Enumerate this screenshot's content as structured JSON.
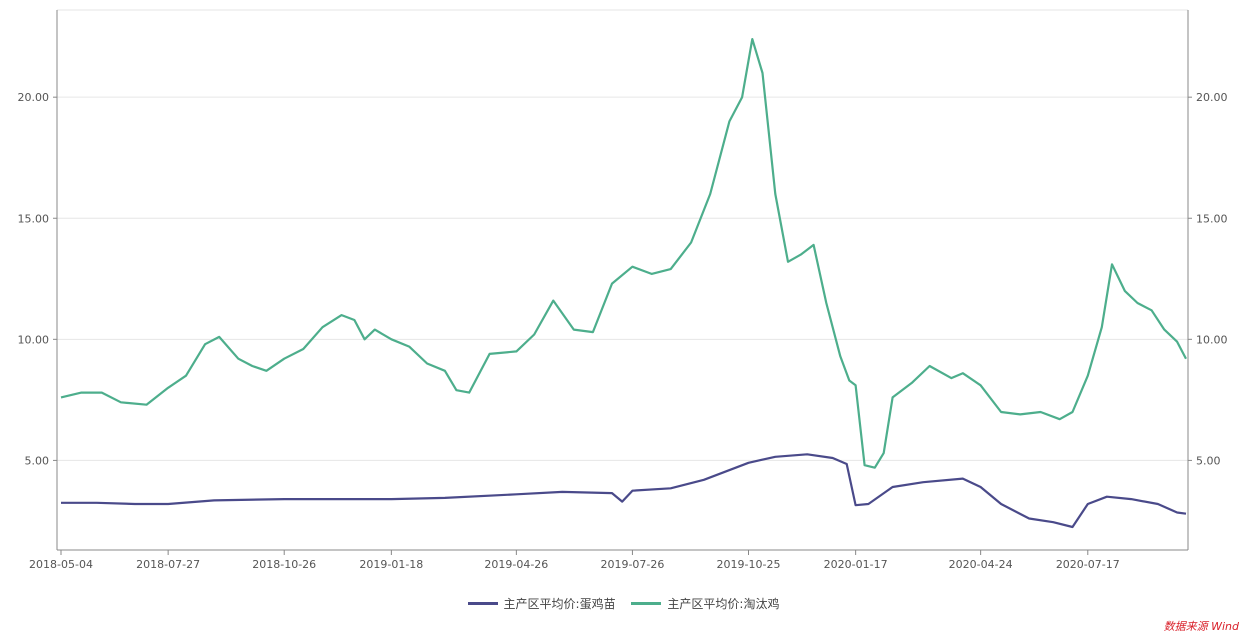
{
  "chart_data": {
    "type": "line",
    "x_ticks": [
      "2018-05-04",
      "2018-07-27",
      "2018-10-26",
      "2019-01-18",
      "2019-04-26",
      "2019-07-26",
      "2019-10-25",
      "2020-01-17",
      "2020-04-24",
      "2020-07-17"
    ],
    "y_left_ticks": [
      "5.00",
      "10.00",
      "15.00",
      "20.00"
    ],
    "y_right_ticks": [
      "5.00",
      "10.00",
      "15.00",
      "20.00"
    ],
    "ylim": [
      1.3,
      23.6
    ],
    "grid": true,
    "legend_position": "bottom",
    "series": [
      {
        "name": "主产区平均价:蛋鸡苗",
        "color": "#4a4a8a",
        "points": [
          [
            "2018-05-04",
            3.25
          ],
          [
            "2018-06-01",
            3.25
          ],
          [
            "2018-07-01",
            3.2
          ],
          [
            "2018-07-27",
            3.2
          ],
          [
            "2018-09-01",
            3.35
          ],
          [
            "2018-10-26",
            3.4
          ],
          [
            "2018-12-01",
            3.4
          ],
          [
            "2019-01-18",
            3.4
          ],
          [
            "2019-03-01",
            3.45
          ],
          [
            "2019-04-26",
            3.6
          ],
          [
            "2019-06-01",
            3.7
          ],
          [
            "2019-07-10",
            3.65
          ],
          [
            "2019-07-18",
            3.3
          ],
          [
            "2019-07-26",
            3.75
          ],
          [
            "2019-08-25",
            3.85
          ],
          [
            "2019-09-20",
            4.2
          ],
          [
            "2019-10-25",
            4.9
          ],
          [
            "2019-11-15",
            5.15
          ],
          [
            "2019-12-10",
            5.25
          ],
          [
            "2019-12-30",
            5.1
          ],
          [
            "2020-01-10",
            4.85
          ],
          [
            "2020-01-17",
            3.15
          ],
          [
            "2020-01-27",
            3.2
          ],
          [
            "2020-02-15",
            3.9
          ],
          [
            "2020-03-10",
            4.1
          ],
          [
            "2020-04-10",
            4.25
          ],
          [
            "2020-04-24",
            3.9
          ],
          [
            "2020-05-10",
            3.2
          ],
          [
            "2020-06-01",
            2.6
          ],
          [
            "2020-06-20",
            2.45
          ],
          [
            "2020-07-05",
            2.25
          ],
          [
            "2020-07-17",
            3.2
          ],
          [
            "2020-08-01",
            3.5
          ],
          [
            "2020-08-20",
            3.4
          ],
          [
            "2020-09-10",
            3.2
          ],
          [
            "2020-09-25",
            2.85
          ],
          [
            "2020-10-02",
            2.8
          ]
        ]
      },
      {
        "name": "主产区平均价:淘汰鸡",
        "color": "#4dae8c",
        "points": [
          [
            "2018-05-04",
            7.6
          ],
          [
            "2018-05-20",
            7.8
          ],
          [
            "2018-06-05",
            7.8
          ],
          [
            "2018-06-20",
            7.4
          ],
          [
            "2018-07-10",
            7.3
          ],
          [
            "2018-07-27",
            8.0
          ],
          [
            "2018-08-10",
            8.5
          ],
          [
            "2018-08-25",
            9.8
          ],
          [
            "2018-09-05",
            10.1
          ],
          [
            "2018-09-20",
            9.2
          ],
          [
            "2018-10-01",
            8.9
          ],
          [
            "2018-10-12",
            8.7
          ],
          [
            "2018-10-26",
            9.2
          ],
          [
            "2018-11-10",
            9.6
          ],
          [
            "2018-11-25",
            10.5
          ],
          [
            "2018-12-10",
            11.0
          ],
          [
            "2018-12-20",
            10.8
          ],
          [
            "2018-12-28",
            10.0
          ],
          [
            "2019-01-05",
            10.4
          ],
          [
            "2019-01-18",
            10.0
          ],
          [
            "2019-02-01",
            9.7
          ],
          [
            "2019-02-15",
            9.0
          ],
          [
            "2019-03-01",
            8.7
          ],
          [
            "2019-03-10",
            7.9
          ],
          [
            "2019-03-20",
            7.8
          ],
          [
            "2019-04-05",
            9.4
          ],
          [
            "2019-04-26",
            9.5
          ],
          [
            "2019-05-10",
            10.2
          ],
          [
            "2019-05-25",
            11.6
          ],
          [
            "2019-06-10",
            10.4
          ],
          [
            "2019-06-25",
            10.3
          ],
          [
            "2019-07-10",
            12.3
          ],
          [
            "2019-07-26",
            13.0
          ],
          [
            "2019-08-10",
            12.7
          ],
          [
            "2019-08-25",
            12.9
          ],
          [
            "2019-09-10",
            14.0
          ],
          [
            "2019-09-25",
            16.0
          ],
          [
            "2019-10-10",
            19.0
          ],
          [
            "2019-10-20",
            20.0
          ],
          [
            "2019-10-28",
            22.4
          ],
          [
            "2019-11-05",
            21.0
          ],
          [
            "2019-11-15",
            16.0
          ],
          [
            "2019-11-25",
            13.2
          ],
          [
            "2019-12-05",
            13.5
          ],
          [
            "2019-12-15",
            13.9
          ],
          [
            "2019-12-25",
            11.5
          ],
          [
            "2020-01-05",
            9.3
          ],
          [
            "2020-01-12",
            8.3
          ],
          [
            "2020-01-17",
            8.1
          ],
          [
            "2020-01-24",
            4.8
          ],
          [
            "2020-02-01",
            4.7
          ],
          [
            "2020-02-08",
            5.3
          ],
          [
            "2020-02-15",
            7.6
          ],
          [
            "2020-03-01",
            8.2
          ],
          [
            "2020-03-15",
            8.9
          ],
          [
            "2020-04-01",
            8.4
          ],
          [
            "2020-04-10",
            8.6
          ],
          [
            "2020-04-24",
            8.1
          ],
          [
            "2020-05-10",
            7.0
          ],
          [
            "2020-05-25",
            6.9
          ],
          [
            "2020-06-10",
            7.0
          ],
          [
            "2020-06-25",
            6.7
          ],
          [
            "2020-07-05",
            7.0
          ],
          [
            "2020-07-17",
            8.5
          ],
          [
            "2020-07-28",
            10.5
          ],
          [
            "2020-08-05",
            13.1
          ],
          [
            "2020-08-15",
            12.0
          ],
          [
            "2020-08-25",
            11.5
          ],
          [
            "2020-09-05",
            11.2
          ],
          [
            "2020-09-15",
            10.4
          ],
          [
            "2020-09-25",
            9.9
          ],
          [
            "2020-10-02",
            9.2
          ]
        ]
      }
    ]
  },
  "source_text": "数据来源 Wind"
}
